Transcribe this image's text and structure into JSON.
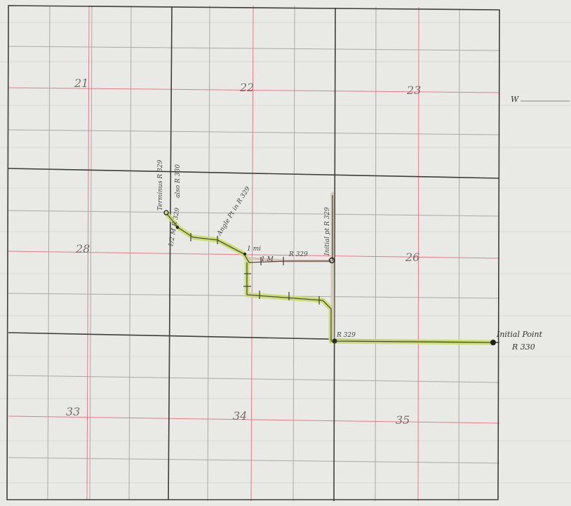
{
  "sections": {
    "s21": "21",
    "s22": "22",
    "s23": "23",
    "s28": "28",
    "s26": "26",
    "s33": "33",
    "s34": "34",
    "s35": "35"
  },
  "margin": {
    "w_label": "W"
  },
  "annotations": {
    "terminus": "Terminus R 329",
    "also": "also R 330",
    "angle_point": "Angle Pt in R 329",
    "initial_pt_r329": "Initial pt R 329",
    "initial_point": "Initial Point",
    "r330": "R 330",
    "r329_a": "R 329",
    "r329_b": "R 329",
    "one_mile": "1 mi",
    "near_terminus": "1/2 M R 329",
    "one_mile_b": "1 M"
  },
  "colors": {
    "paper": "#e9e9e6",
    "grid_fine": "#b9b9b9",
    "grid_section": "#444444",
    "grid_red": "#e77a88",
    "route_highlight": "#c7df6e",
    "route_ink": "#5a4a3e"
  }
}
